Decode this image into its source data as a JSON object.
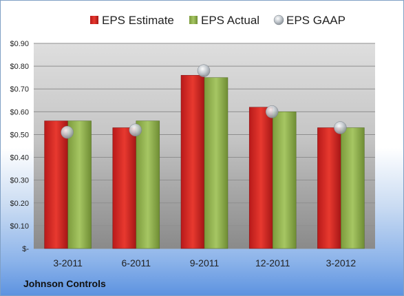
{
  "chart_data": {
    "type": "bar",
    "categories": [
      "3-2011",
      "6-2011",
      "9-2011",
      "12-2011",
      "3-2012"
    ],
    "series": [
      {
        "name": "EPS Estimate",
        "type": "bar",
        "color": "#c41e1e",
        "values": [
          0.56,
          0.53,
          0.76,
          0.62,
          0.53
        ]
      },
      {
        "name": "EPS Actual",
        "type": "bar",
        "color": "#8aab46",
        "values": [
          0.56,
          0.56,
          0.75,
          0.6,
          0.53
        ]
      },
      {
        "name": "EPS GAAP",
        "type": "scatter",
        "color": "#c0c8d0",
        "values": [
          0.51,
          0.52,
          0.78,
          0.6,
          0.53
        ]
      }
    ],
    "y_ticks": [
      {
        "value": 0.0,
        "label": "$-"
      },
      {
        "value": 0.1,
        "label": "$0.10"
      },
      {
        "value": 0.2,
        "label": "$0.20"
      },
      {
        "value": 0.3,
        "label": "$0.30"
      },
      {
        "value": 0.4,
        "label": "$0.40"
      },
      {
        "value": 0.5,
        "label": "$0.50"
      },
      {
        "value": 0.6,
        "label": "$0.60"
      },
      {
        "value": 0.7,
        "label": "$0.70"
      },
      {
        "value": 0.8,
        "label": "$0.80"
      },
      {
        "value": 0.9,
        "label": "$0.90"
      }
    ],
    "ylim": [
      0,
      0.9
    ],
    "grid": true,
    "legend_position": "top"
  },
  "caption": "Johnson Controls"
}
